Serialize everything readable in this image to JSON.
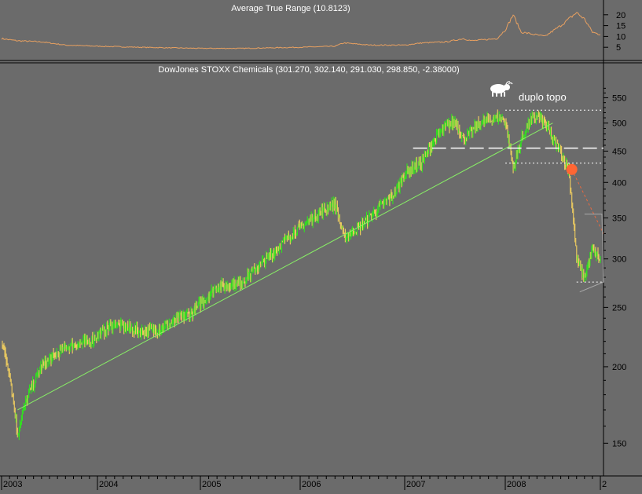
{
  "colors": {
    "background": "#6b6b6b",
    "price_up": "#33dd22",
    "price_down": "#e8c860",
    "trendline": "#88ee66",
    "atr_line": "#e8a060",
    "marker": "#ff6633",
    "forecast": "#e86a40",
    "text": "#ffffff",
    "separator": "#000000"
  },
  "atr_panel": {
    "title": "Average True Range (10.8123)",
    "yticks": [
      "20",
      "15",
      "10",
      "5"
    ]
  },
  "price_panel": {
    "title": "DowJones STOXX Chemicals (301.270, 302.140, 291.030, 298.850, -2.38000)",
    "yticks": [
      "550",
      "500",
      "450",
      "400",
      "350",
      "300",
      "250",
      "200",
      "150"
    ],
    "scale": "log"
  },
  "annotation": {
    "label": "duplo topo",
    "icon": "bull-icon"
  },
  "xaxis": {
    "ticks": [
      "2003",
      "2004",
      "2005",
      "2006",
      "2007",
      "2008",
      "2"
    ]
  },
  "chart_data": [
    {
      "type": "line",
      "title": "Average True Range (10.8123)",
      "yticks": [
        20,
        15,
        10,
        5
      ],
      "ylim": [
        0,
        25
      ],
      "x": [
        "2003-01",
        "2003-03",
        "2003-06",
        "2003-09",
        "2004-01",
        "2004-06",
        "2005-01",
        "2005-06",
        "2006-01",
        "2006-05",
        "2006-06",
        "2006-09",
        "2007-01",
        "2007-03",
        "2007-06",
        "2007-08",
        "2007-09",
        "2007-12",
        "2008-01",
        "2008-02",
        "2008-03",
        "2008-06",
        "2008-08",
        "2008-09",
        "2008-10",
        "2008-11",
        "2008-12",
        "2009-01"
      ],
      "series": [
        {
          "values": [
            9,
            8,
            7.5,
            6,
            5.5,
            5,
            4.5,
            4.5,
            5,
            5.5,
            7,
            6,
            6,
            7,
            7.5,
            9,
            8,
            9,
            13,
            20,
            12,
            10,
            15,
            18,
            21,
            18,
            12,
            10.8
          ]
        }
      ]
    },
    {
      "type": "line",
      "title": "DowJones STOXX Chemicals (301.270, 302.140, 291.030, 298.850, -2.38000)",
      "yscale": "log",
      "ylim": [
        135,
        600
      ],
      "yticks": [
        550,
        500,
        450,
        400,
        350,
        300,
        250,
        200,
        150
      ],
      "x": [
        "2003-01",
        "2003-02",
        "2003-03",
        "2003-04",
        "2003-06",
        "2003-09",
        "2003-12",
        "2004-03",
        "2004-06",
        "2004-08",
        "2004-12",
        "2005-03",
        "2005-06",
        "2005-09",
        "2005-12",
        "2006-03",
        "2006-05",
        "2006-06",
        "2006-08",
        "2006-12",
        "2007-01",
        "2007-03",
        "2007-05",
        "2007-07",
        "2007-08",
        "2007-10",
        "2007-12",
        "2008-01",
        "2008-02",
        "2008-03",
        "2008-04",
        "2008-05",
        "2008-06",
        "2008-07",
        "2008-08",
        "2008-09",
        "2008-10",
        "2008-11",
        "2008-12",
        "2009-01"
      ],
      "series": [
        {
          "values": [
            220,
            195,
            155,
            175,
            200,
            215,
            220,
            235,
            228,
            230,
            245,
            270,
            275,
            300,
            330,
            355,
            370,
            325,
            340,
            385,
            415,
            430,
            480,
            505,
            470,
            500,
            510,
            505,
            420,
            470,
            500,
            515,
            500,
            470,
            450,
            420,
            300,
            280,
            310,
            300
          ]
        }
      ],
      "annotations": {
        "double_top_label": "duplo topo",
        "resistance_levels": [
          525,
          455,
          430,
          275
        ],
        "trendline": {
          "from": [
            "2003-03",
            170
          ],
          "to": [
            "2008-06",
            500
          ]
        }
      }
    }
  ]
}
